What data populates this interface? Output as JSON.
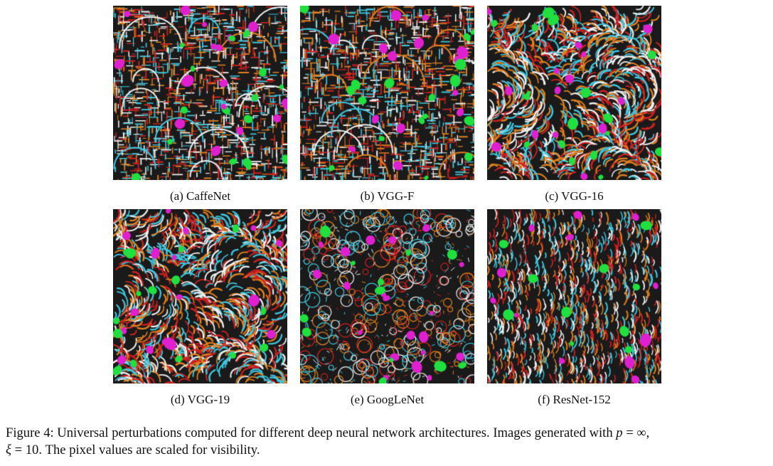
{
  "panels": [
    {
      "caption": "(a)  CaffeNet",
      "style": "grid"
    },
    {
      "caption": "(b)  VGG-F",
      "style": "grid"
    },
    {
      "caption": "(c)  VGG-16",
      "style": "swirl"
    },
    {
      "caption": "(d)  VGG-19",
      "style": "swirl"
    },
    {
      "caption": "(e)  GoogLeNet",
      "style": "circles"
    },
    {
      "caption": "(f)  ResNet-152",
      "style": "streaks"
    }
  ],
  "figure_caption": {
    "line1_text": "Figure 4:  Universal perturbations computed for different deep neural network architectures. Images generated with ",
    "line1_math": "p",
    "line1_eq": " = ∞,",
    "line2_math": "ξ",
    "line2_eq": " = 10",
    "line2_text": ". The pixel values are scaled for visibility."
  },
  "colors": {
    "magenta": "#e020d0",
    "green": "#20e040",
    "cyan": "#40c8e0",
    "orange": "#e08020",
    "red": "#d02020",
    "white": "#f0f0f0"
  }
}
